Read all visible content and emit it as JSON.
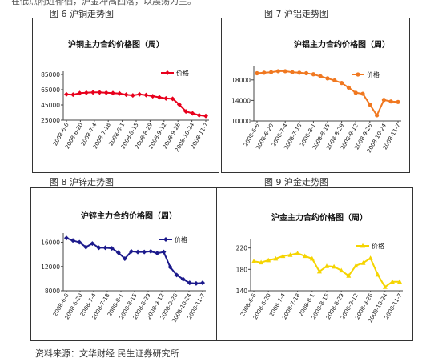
{
  "page": {
    "top_text": "在低点附近徘徊，沪金冲高回落，以震荡为主。",
    "source": "资料来源：文华财经  民生证券研究所"
  },
  "colors": {
    "copper": "#e8001c",
    "aluminum": "#f07820",
    "zinc": "#1c1a8c",
    "gold": "#f5d400"
  },
  "chart_data": [
    {
      "id": "copper",
      "type": "line",
      "caption": "图 6  沪铜走势图",
      "title": "沪铜主力合约价格图（周）",
      "legend": "价格",
      "xlabels": [
        "2008-6-6",
        "2008-6-20",
        "2008-7-4",
        "2008-7-18",
        "2008-8-1",
        "2008-8-15",
        "2008-8-29",
        "2008-9-12",
        "2008-9-26",
        "2008-10-24",
        "2008-11-7"
      ],
      "y_ticks": [
        "85000",
        "65000",
        "45000",
        "25000"
      ],
      "ylim": [
        25000,
        85000
      ],
      "values": [
        59000,
        58500,
        60500,
        61000,
        61500,
        61500,
        61000,
        60500,
        60000,
        58500,
        57500,
        59000,
        58000,
        56500,
        55000,
        53500,
        53000,
        45500,
        36500,
        34000,
        31500,
        30500
      ]
    },
    {
      "id": "aluminum",
      "type": "line",
      "caption": "图 7  沪铝走势图",
      "title": "沪铝主力合约价格图（周）",
      "legend": "价格",
      "xlabels": [
        "2008-6-6",
        "2008-6-20",
        "2008-7-4",
        "2008-7-18",
        "2008-8-1",
        "2008-8-15",
        "2008-8-29",
        "2008-9-12",
        "2008-9-26",
        "2008-10-24",
        "2008-11-7"
      ],
      "y_ticks": [
        "18000",
        "14000",
        "10000"
      ],
      "ylim": [
        10000,
        20000
      ],
      "values": [
        19300,
        19400,
        19500,
        19700,
        19700,
        19500,
        19400,
        19300,
        19100,
        18700,
        18300,
        17900,
        17400,
        16500,
        15500,
        15300,
        13200,
        11100,
        14100,
        13800,
        13700
      ]
    },
    {
      "id": "zinc",
      "type": "line",
      "caption": "图 8  沪锌走势图",
      "title": "沪锌主力合约价格图（周）",
      "legend": "价格",
      "xlabels": [
        "2008-6-6",
        "2008-6-20",
        "2008-7-4",
        "2008-7-18",
        "2008-8-1",
        "2008-8-15",
        "2008-8-29",
        "2008-9-12",
        "2008-9-26",
        "2008-10-24",
        "2008-11-7"
      ],
      "y_ticks": [
        "16000",
        "12000",
        "8000"
      ],
      "ylim": [
        8000,
        17000
      ],
      "values": [
        16700,
        16300,
        16000,
        15200,
        15800,
        15100,
        15100,
        15000,
        14300,
        13300,
        14500,
        14400,
        14400,
        14500,
        14200,
        14400,
        11900,
        10600,
        9900,
        9300,
        9200,
        9300
      ]
    },
    {
      "id": "gold",
      "type": "line",
      "caption": "图 9  沪金走势图",
      "title": "沪金主力合约价格图（周）",
      "legend": "价格",
      "xlabels": [
        "2008-6-6",
        "2008-6-20",
        "2008-7-4",
        "2008-7-18",
        "2008-8-1",
        "2008-8-15",
        "2008-8-29",
        "2008-9-12",
        "2008-9-26",
        "2008-10-24",
        "2008-11-7"
      ],
      "y_ticks": [
        "220",
        "180",
        "140"
      ],
      "ylim": [
        140,
        230
      ],
      "values": [
        195,
        193,
        197,
        200,
        205,
        207,
        210,
        205,
        200,
        176,
        186,
        185,
        178,
        168,
        187,
        192,
        201,
        170,
        147,
        157,
        157
      ]
    }
  ]
}
